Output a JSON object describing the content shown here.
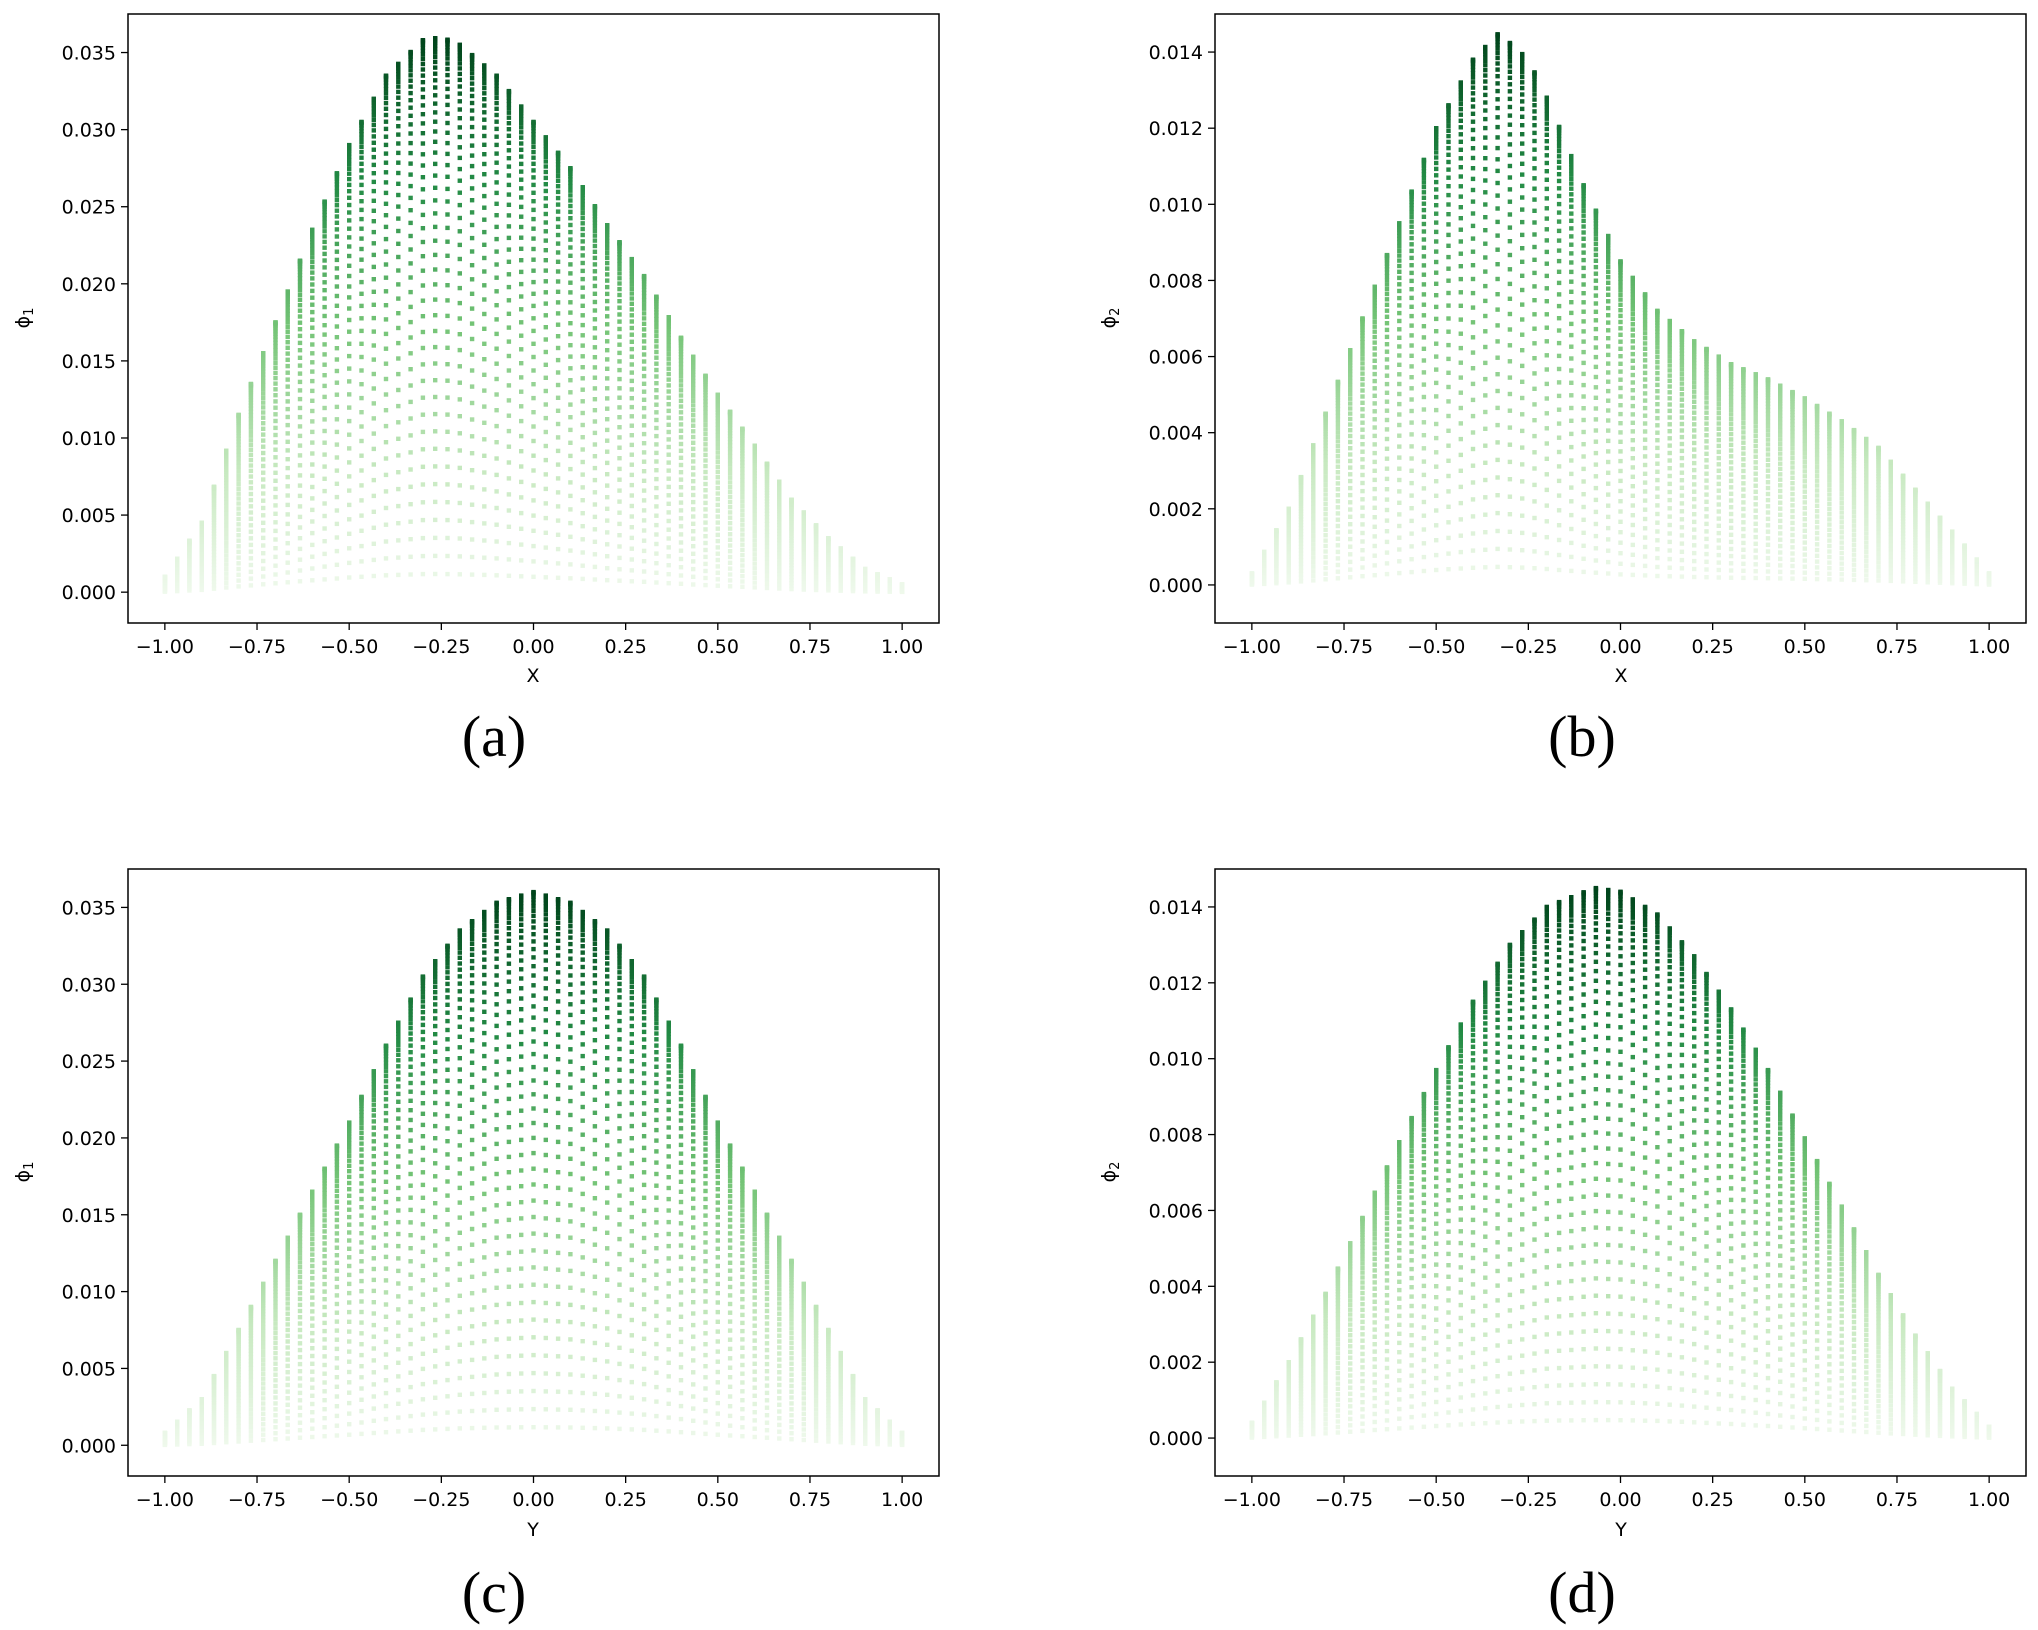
{
  "figure": {
    "colormap": [
      "#f7fcf5",
      "#c7e9c0",
      "#74c476",
      "#238b45",
      "#00441b"
    ]
  },
  "chart_data": [
    {
      "type": "scatter",
      "panel": "(a)",
      "xlabel": "X",
      "ylabel": "ϕ1",
      "ylabel_base": "ϕ",
      "ylabel_sub": "1",
      "xlim": [
        -1.1,
        1.1
      ],
      "ylim": [
        -0.002,
        0.0375
      ],
      "xticks": [
        -1.0,
        -0.75,
        -0.5,
        -0.25,
        0.0,
        0.25,
        0.5,
        0.75,
        1.0
      ],
      "xtick_labels": [
        "−1.00",
        "−0.75",
        "−0.50",
        "−0.25",
        "0.00",
        "0.25",
        "0.50",
        "0.75",
        "1.00"
      ],
      "yticks": [
        0.0,
        0.005,
        0.01,
        0.015,
        0.02,
        0.025,
        0.03,
        0.035
      ],
      "ytick_labels": [
        "0.000",
        "0.005",
        "0.010",
        "0.015",
        "0.020",
        "0.025",
        "0.030",
        "0.035"
      ],
      "peak_value": 0.036,
      "peak_location": -0.27,
      "envelope": [
        [
          -1.0,
          0.001
        ],
        [
          -0.9,
          0.0045
        ],
        [
          -0.8,
          0.0115
        ],
        [
          -0.7,
          0.0175
        ],
        [
          -0.6,
          0.0235
        ],
        [
          -0.5,
          0.029
        ],
        [
          -0.4,
          0.0335
        ],
        [
          -0.3,
          0.0358
        ],
        [
          -0.25,
          0.036
        ],
        [
          -0.2,
          0.0355
        ],
        [
          -0.1,
          0.0335
        ],
        [
          0.0,
          0.0305
        ],
        [
          0.1,
          0.0275
        ],
        [
          0.2,
          0.0238
        ],
        [
          0.3,
          0.0205
        ],
        [
          0.4,
          0.0165
        ],
        [
          0.5,
          0.0128
        ],
        [
          0.6,
          0.0095
        ],
        [
          0.7,
          0.006
        ],
        [
          0.8,
          0.0035
        ],
        [
          0.9,
          0.0015
        ],
        [
          1.0,
          0.0005
        ]
      ]
    },
    {
      "type": "scatter",
      "panel": "(b)",
      "xlabel": "X",
      "ylabel": "ϕ2",
      "ylabel_base": "ϕ",
      "ylabel_sub": "2",
      "xlim": [
        -1.1,
        1.1
      ],
      "ylim": [
        -0.001,
        0.015
      ],
      "xticks": [
        -1.0,
        -0.75,
        -0.5,
        -0.25,
        0.0,
        0.25,
        0.5,
        0.75,
        1.0
      ],
      "xtick_labels": [
        "−1.00",
        "−0.75",
        "−0.50",
        "−0.25",
        "0.00",
        "0.25",
        "0.50",
        "0.75",
        "1.00"
      ],
      "yticks": [
        0.0,
        0.002,
        0.004,
        0.006,
        0.008,
        0.01,
        0.012,
        0.014
      ],
      "ytick_labels": [
        "0.000",
        "0.002",
        "0.004",
        "0.006",
        "0.008",
        "0.010",
        "0.012",
        "0.014"
      ],
      "peak_value": 0.0145,
      "peak_location": -0.33,
      "envelope": [
        [
          -1.0,
          0.0003
        ],
        [
          -0.9,
          0.002
        ],
        [
          -0.8,
          0.0045
        ],
        [
          -0.7,
          0.007
        ],
        [
          -0.6,
          0.0095
        ],
        [
          -0.5,
          0.012
        ],
        [
          -0.4,
          0.0138
        ],
        [
          -0.33,
          0.0145
        ],
        [
          -0.25,
          0.0138
        ],
        [
          -0.2,
          0.0128
        ],
        [
          -0.1,
          0.0105
        ],
        [
          0.0,
          0.0085
        ],
        [
          0.1,
          0.0072
        ],
        [
          0.2,
          0.0064
        ],
        [
          0.3,
          0.0058
        ],
        [
          0.4,
          0.0054
        ],
        [
          0.5,
          0.0049
        ],
        [
          0.6,
          0.0043
        ],
        [
          0.7,
          0.0036
        ],
        [
          0.8,
          0.0025
        ],
        [
          0.9,
          0.0014
        ],
        [
          1.0,
          0.0003
        ]
      ]
    },
    {
      "type": "scatter",
      "panel": "(c)",
      "xlabel": "Y",
      "ylabel": "ϕ1",
      "ylabel_base": "ϕ",
      "ylabel_sub": "1",
      "xlim": [
        -1.1,
        1.1
      ],
      "ylim": [
        -0.002,
        0.0375
      ],
      "xticks": [
        -1.0,
        -0.75,
        -0.5,
        -0.25,
        0.0,
        0.25,
        0.5,
        0.75,
        1.0
      ],
      "xtick_labels": [
        "−1.00",
        "−0.75",
        "−0.50",
        "−0.25",
        "0.00",
        "0.25",
        "0.50",
        "0.75",
        "1.00"
      ],
      "yticks": [
        0.0,
        0.005,
        0.01,
        0.015,
        0.02,
        0.025,
        0.03,
        0.035
      ],
      "ytick_labels": [
        "0.000",
        "0.005",
        "0.010",
        "0.015",
        "0.020",
        "0.025",
        "0.030",
        "0.035"
      ],
      "peak_value": 0.036,
      "peak_location": 0.0,
      "envelope": [
        [
          -1.0,
          0.0008
        ],
        [
          -0.9,
          0.003
        ],
        [
          -0.8,
          0.0075
        ],
        [
          -0.7,
          0.012
        ],
        [
          -0.6,
          0.0165
        ],
        [
          -0.5,
          0.021
        ],
        [
          -0.4,
          0.026
        ],
        [
          -0.3,
          0.0305
        ],
        [
          -0.2,
          0.0335
        ],
        [
          -0.1,
          0.0353
        ],
        [
          0.0,
          0.036
        ],
        [
          0.1,
          0.0353
        ],
        [
          0.2,
          0.0335
        ],
        [
          0.3,
          0.0305
        ],
        [
          0.4,
          0.026
        ],
        [
          0.5,
          0.021
        ],
        [
          0.6,
          0.0165
        ],
        [
          0.7,
          0.012
        ],
        [
          0.8,
          0.0075
        ],
        [
          0.9,
          0.003
        ],
        [
          1.0,
          0.0008
        ]
      ]
    },
    {
      "type": "scatter",
      "panel": "(d)",
      "xlabel": "Y",
      "ylabel": "ϕ2",
      "ylabel_base": "ϕ",
      "ylabel_sub": "2",
      "xlim": [
        -1.1,
        1.1
      ],
      "ylim": [
        -0.001,
        0.015
      ],
      "xticks": [
        -1.0,
        -0.75,
        -0.5,
        -0.25,
        0.0,
        0.25,
        0.5,
        0.75,
        1.0
      ],
      "xtick_labels": [
        "−1.00",
        "−0.75",
        "−0.50",
        "−0.25",
        "0.00",
        "0.25",
        "0.50",
        "0.75",
        "1.00"
      ],
      "yticks": [
        0.0,
        0.002,
        0.004,
        0.006,
        0.008,
        0.01,
        0.012,
        0.014
      ],
      "ytick_labels": [
        "0.000",
        "0.002",
        "0.004",
        "0.006",
        "0.008",
        "0.010",
        "0.012",
        "0.014"
      ],
      "peak_value": 0.0145,
      "peak_location": -0.07,
      "envelope": [
        [
          -1.0,
          0.0004
        ],
        [
          -0.9,
          0.002
        ],
        [
          -0.8,
          0.0038
        ],
        [
          -0.7,
          0.0058
        ],
        [
          -0.6,
          0.0078
        ],
        [
          -0.5,
          0.0097
        ],
        [
          -0.4,
          0.0115
        ],
        [
          -0.3,
          0.013
        ],
        [
          -0.2,
          0.014
        ],
        [
          -0.07,
          0.0145
        ],
        [
          0.0,
          0.0144
        ],
        [
          0.1,
          0.0138
        ],
        [
          0.2,
          0.0127
        ],
        [
          0.3,
          0.0113
        ],
        [
          0.4,
          0.0097
        ],
        [
          0.5,
          0.0079
        ],
        [
          0.6,
          0.0061
        ],
        [
          0.7,
          0.0043
        ],
        [
          0.8,
          0.0027
        ],
        [
          0.9,
          0.0013
        ],
        [
          1.0,
          0.0003
        ]
      ]
    }
  ]
}
